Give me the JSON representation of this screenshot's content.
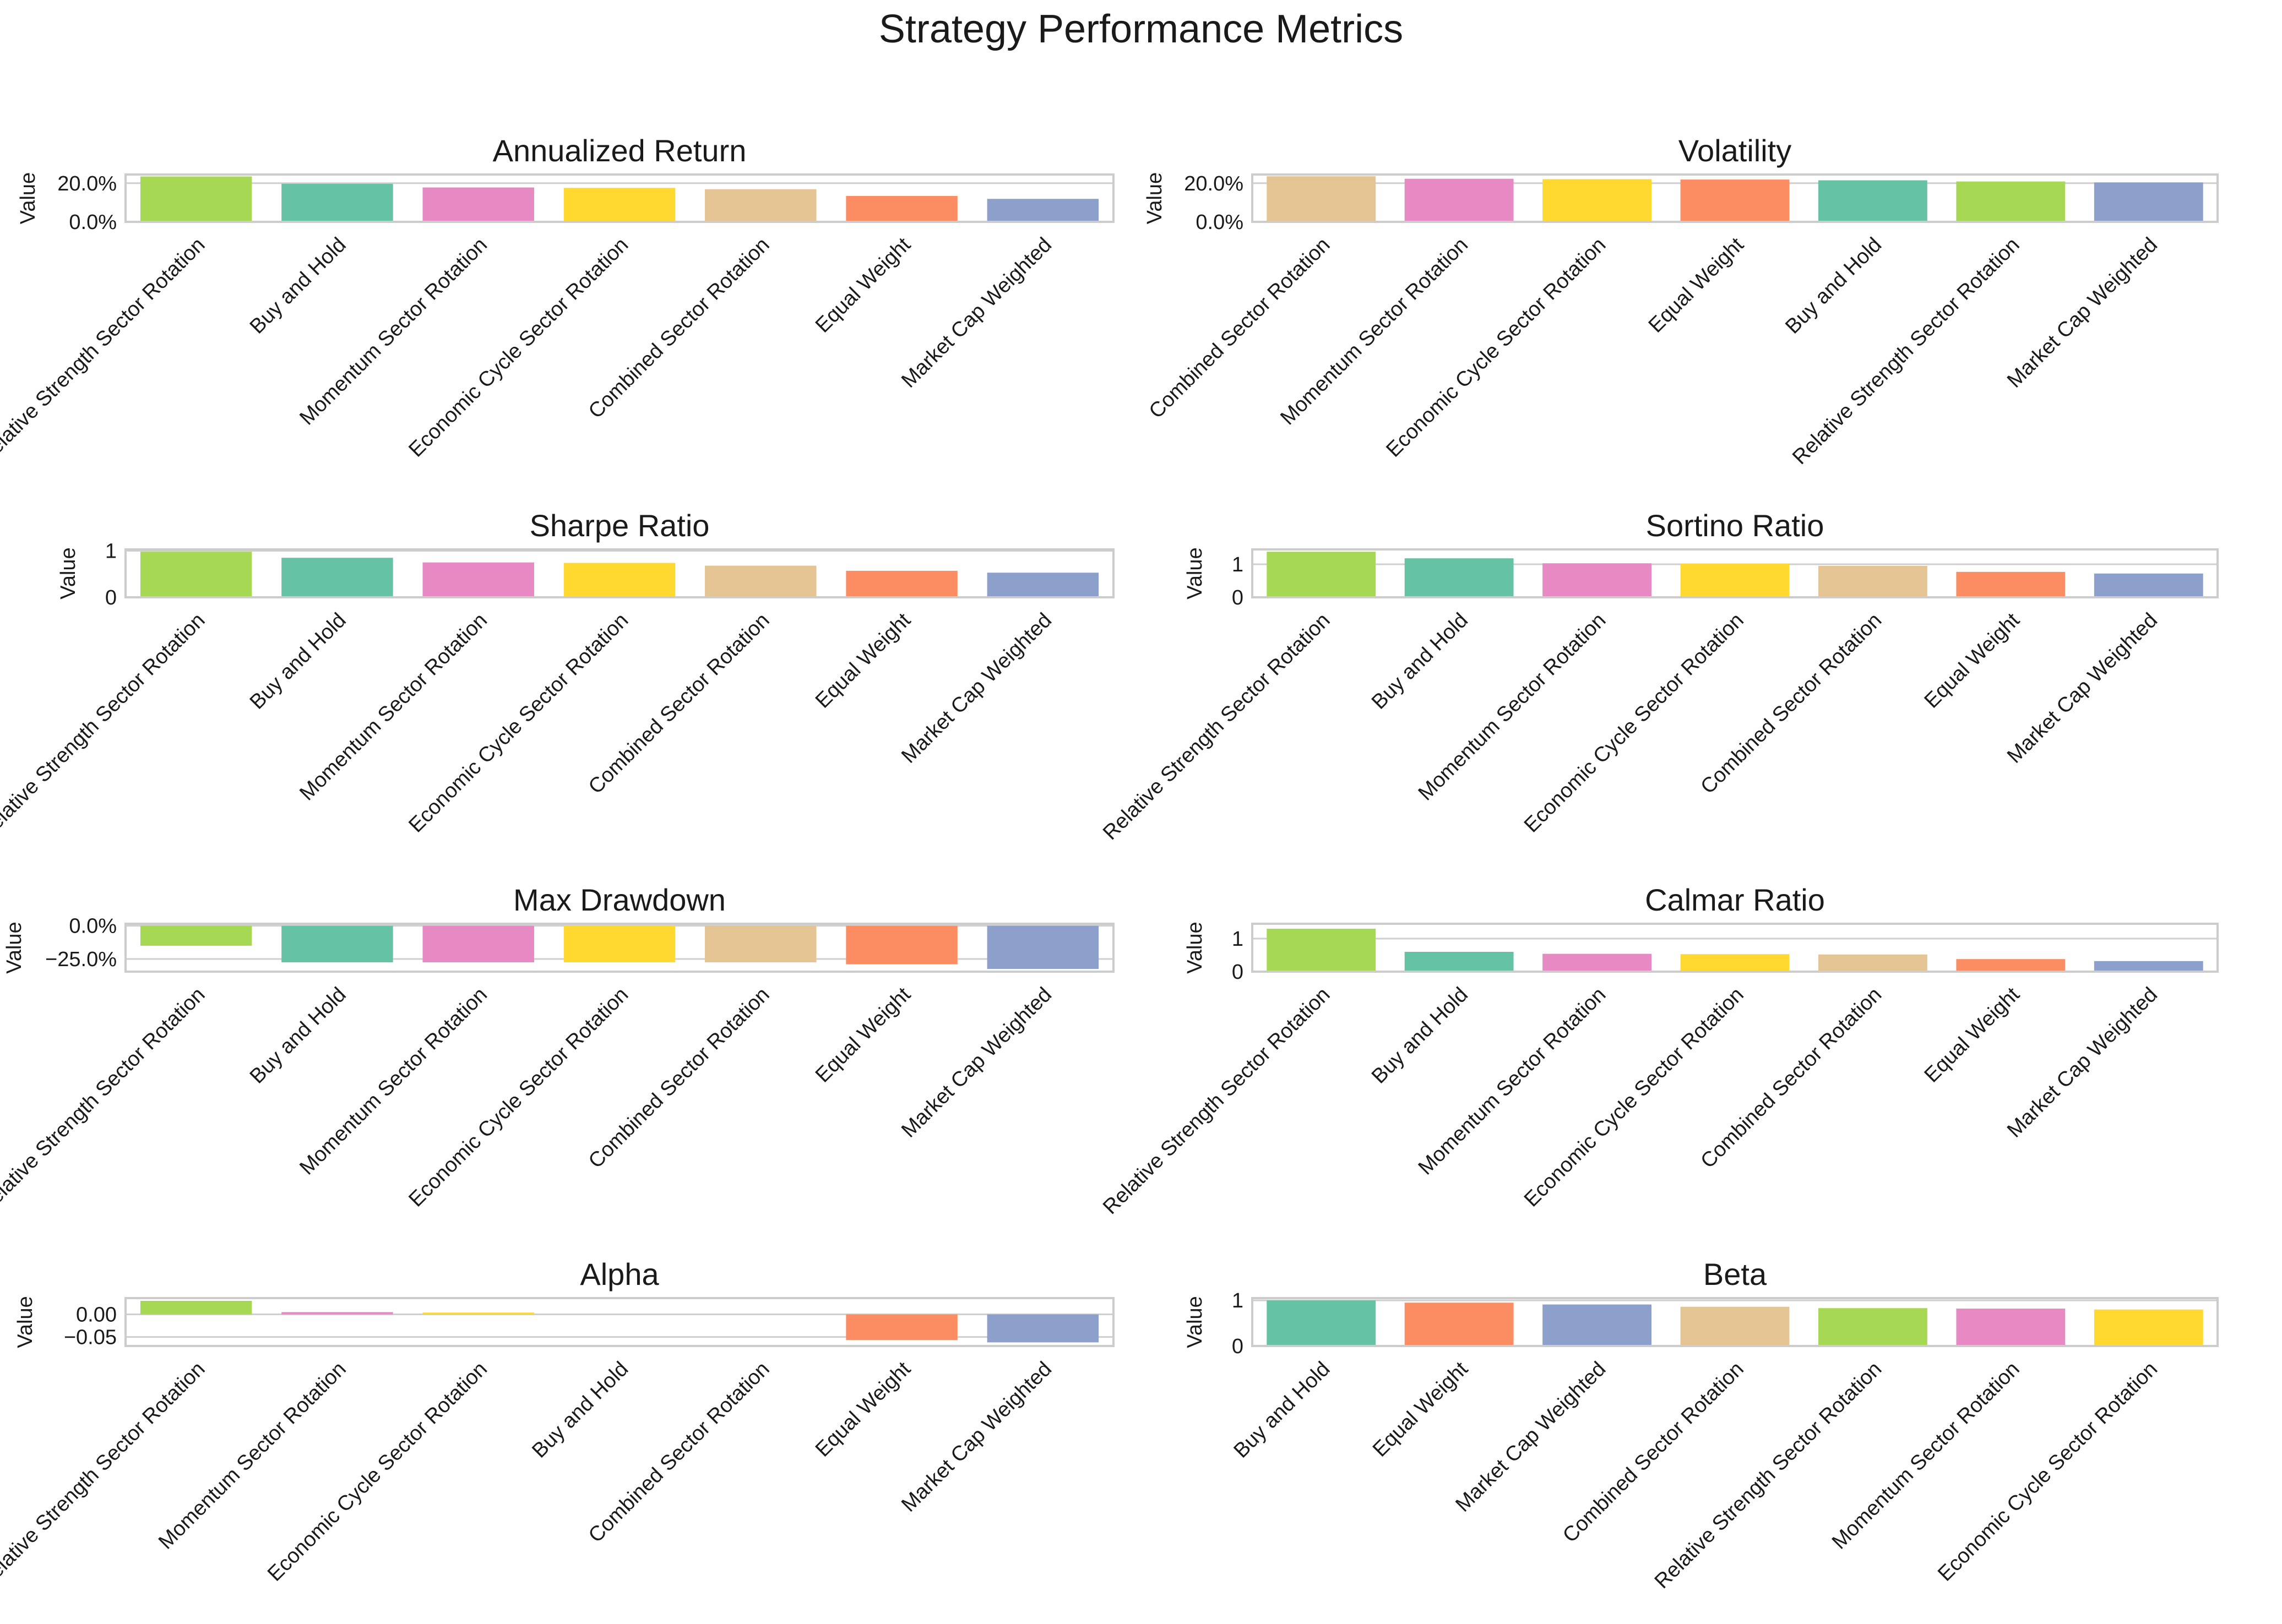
{
  "title": "Strategy Performance Metrics",
  "colors": {
    "Relative Strength Sector Rotation": "#a6d854",
    "Buy and Hold": "#66c2a5",
    "Momentum Sector Rotation": "#e78ac3",
    "Economic Cycle Sector Rotation": "#ffd92f",
    "Combined Sector Rotation": "#e5c494",
    "Equal Weight": "#fc8d62",
    "Market Cap Weighted": "#8da0cb"
  },
  "chart_data": [
    {
      "type": "bar",
      "title": "Annualized Return",
      "ylabel": "Value",
      "ylim": [
        0,
        0.245
      ],
      "yticks": [
        0,
        0.2
      ],
      "ytick_labels": [
        "0.0%",
        "20.0%"
      ],
      "categories": [
        "Relative Strength Sector Rotation",
        "Buy and Hold",
        "Momentum Sector Rotation",
        "Economic Cycle Sector Rotation",
        "Combined Sector Rotation",
        "Equal Weight",
        "Market Cap Weighted"
      ],
      "values": [
        0.235,
        0.197,
        0.178,
        0.176,
        0.169,
        0.134,
        0.119
      ]
    },
    {
      "type": "bar",
      "title": "Volatility",
      "ylabel": "Value",
      "ylim": [
        0,
        0.245
      ],
      "yticks": [
        0,
        0.2
      ],
      "ytick_labels": [
        "0.0%",
        "20.0%"
      ],
      "categories": [
        "Combined Sector Rotation",
        "Momentum Sector Rotation",
        "Economic Cycle Sector Rotation",
        "Equal Weight",
        "Buy and Hold",
        "Relative Strength Sector Rotation",
        "Market Cap Weighted"
      ],
      "values": [
        0.236,
        0.223,
        0.221,
        0.219,
        0.215,
        0.209,
        0.204
      ]
    },
    {
      "type": "bar",
      "title": "Sharpe Ratio",
      "ylabel": "Value",
      "ylim": [
        0,
        1.03
      ],
      "yticks": [
        0,
        1
      ],
      "ytick_labels": [
        "0",
        "1"
      ],
      "categories": [
        "Relative Strength Sector Rotation",
        "Buy and Hold",
        "Momentum Sector Rotation",
        "Economic Cycle Sector Rotation",
        "Combined Sector Rotation",
        "Equal Weight",
        "Market Cap Weighted"
      ],
      "values": [
        0.98,
        0.85,
        0.75,
        0.74,
        0.68,
        0.57,
        0.53
      ]
    },
    {
      "type": "bar",
      "title": "Sortino Ratio",
      "ylabel": "Value",
      "ylim": [
        0,
        1.45
      ],
      "yticks": [
        0,
        1
      ],
      "ytick_labels": [
        "0",
        "1"
      ],
      "categories": [
        "Relative Strength Sector Rotation",
        "Buy and Hold",
        "Momentum Sector Rotation",
        "Economic Cycle Sector Rotation",
        "Combined Sector Rotation",
        "Equal Weight",
        "Market Cap Weighted"
      ],
      "values": [
        1.38,
        1.18,
        1.03,
        1.02,
        0.95,
        0.77,
        0.72
      ]
    },
    {
      "type": "bar",
      "title": "Max Drawdown",
      "ylabel": "Value",
      "ylim": [
        -0.345,
        0.015
      ],
      "yticks": [
        -0.25,
        0
      ],
      "ytick_labels": [
        "−25.0%",
        "0.0%"
      ],
      "categories": [
        "Relative Strength Sector Rotation",
        "Buy and Hold",
        "Momentum Sector Rotation",
        "Economic Cycle Sector Rotation",
        "Combined Sector Rotation",
        "Equal Weight",
        "Market Cap Weighted"
      ],
      "values": [
        -0.15,
        -0.275,
        -0.275,
        -0.275,
        -0.275,
        -0.29,
        -0.325
      ]
    },
    {
      "type": "bar",
      "title": "Calmar Ratio",
      "ylabel": "Value",
      "ylim": [
        0,
        1.45
      ],
      "yticks": [
        0,
        1
      ],
      "ytick_labels": [
        "0",
        "1"
      ],
      "categories": [
        "Relative Strength Sector Rotation",
        "Buy and Hold",
        "Momentum Sector Rotation",
        "Economic Cycle Sector Rotation",
        "Combined Sector Rotation",
        "Equal Weight",
        "Market Cap Weighted"
      ],
      "values": [
        1.3,
        0.6,
        0.54,
        0.53,
        0.52,
        0.38,
        0.32
      ]
    },
    {
      "type": "bar",
      "title": "Alpha",
      "ylabel": "Value",
      "ylim": [
        -0.07,
        0.036
      ],
      "yticks": [
        -0.05,
        0
      ],
      "ytick_labels": [
        "−0.05",
        "0.00"
      ],
      "categories": [
        "Relative Strength Sector Rotation",
        "Momentum Sector Rotation",
        "Economic Cycle Sector Rotation",
        "Buy and Hold",
        "Combined Sector Rotation",
        "Equal Weight",
        "Market Cap Weighted"
      ],
      "values": [
        0.03,
        0.005,
        0.004,
        0,
        0,
        -0.057,
        -0.062
      ]
    },
    {
      "type": "bar",
      "title": "Beta",
      "ylabel": "Value",
      "ylim": [
        0,
        1.05
      ],
      "yticks": [
        0,
        1
      ],
      "ytick_labels": [
        "0",
        "1"
      ],
      "categories": [
        "Buy and Hold",
        "Equal Weight",
        "Market Cap Weighted",
        "Combined Sector Rotation",
        "Relative Strength Sector Rotation",
        "Momentum Sector Rotation",
        "Economic Cycle Sector Rotation"
      ],
      "values": [
        1.0,
        0.95,
        0.91,
        0.86,
        0.83,
        0.82,
        0.8
      ]
    }
  ]
}
